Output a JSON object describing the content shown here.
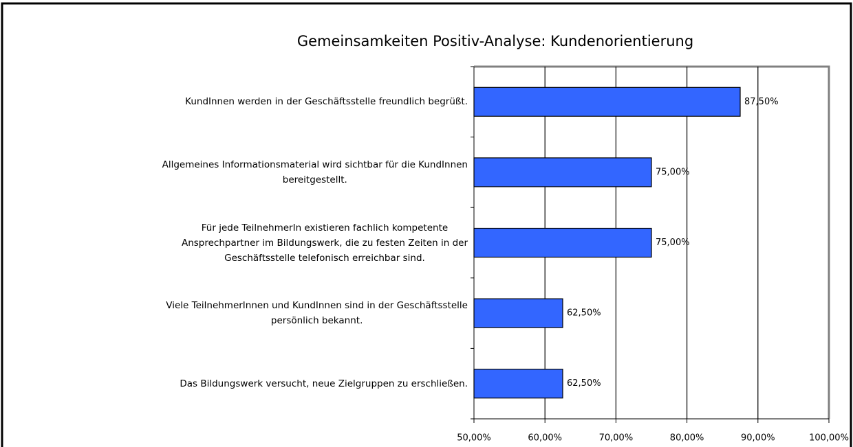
{
  "chart_data": {
    "type": "hbar",
    "title": "Gemeinsamkeiten Positiv-Analyse: Kundenorientierung",
    "categories": [
      "KundInnen werden in der Geschäftsstelle freundlich begrüßt.",
      "Allgemeines Informationsmaterial wird sichtbar für die KundInnen\nbereitgestellt.",
      "Für jede TeilnehmerIn existieren fachlich kompetente\nAnsprechpartner im Bildungswerk, die zu festen Zeiten in der\nGeschäftsstelle telefonisch erreichbar sind.",
      "Viele TeilnehmerInnen und KundInnen sind in der Geschäftsstelle\npersönlich bekannt.",
      "Das Bildungswerk versucht, neue Zielgruppen zu erschließen."
    ],
    "values": [
      87.5,
      75,
      75,
      62.5,
      62.5
    ],
    "value_labels": [
      "87,50%",
      "75,00%",
      "75,00%",
      "62,50%",
      "62,50%"
    ],
    "color": "#3366ff",
    "xlim": [
      50,
      100
    ],
    "xticks": [
      {
        "value": 50,
        "label": "50,00%"
      },
      {
        "value": 60,
        "label": "60,00%"
      },
      {
        "value": 70,
        "label": "70,00%"
      },
      {
        "value": 80,
        "label": "80,00%"
      },
      {
        "value": 90,
        "label": "90,00%"
      },
      {
        "value": 100,
        "label": "100,00%"
      }
    ],
    "grid": true
  }
}
